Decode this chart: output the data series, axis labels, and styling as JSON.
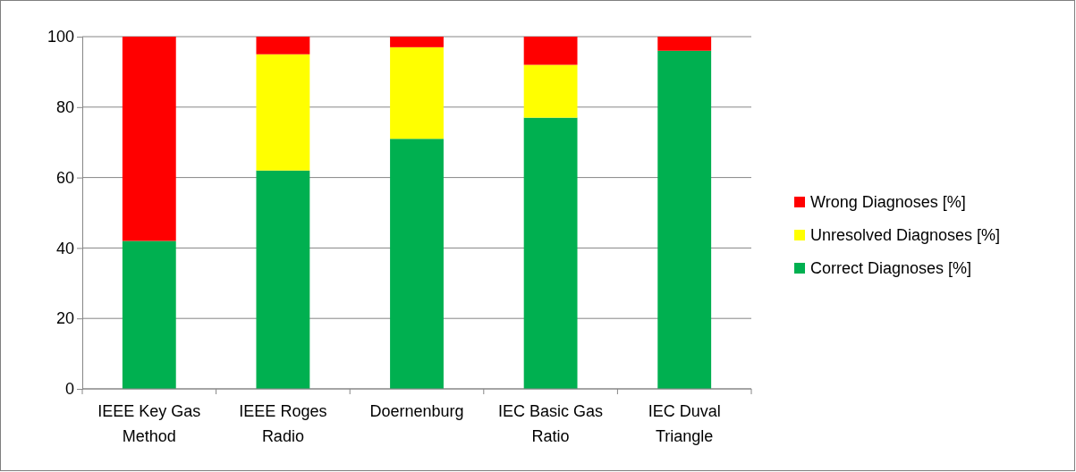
{
  "chart_data": {
    "type": "bar",
    "stacked": true,
    "categories": [
      "IEEE Key Gas Method",
      "IEEE Roges Radio",
      "Doernenburg",
      "IEC Basic Gas Ratio",
      "IEC Duval Triangle"
    ],
    "series": [
      {
        "name": "Correct Diagnoses [%]",
        "color": "#00b050",
        "values": [
          42,
          62,
          71,
          77,
          96
        ]
      },
      {
        "name": "Unresolved Diagnoses [%]",
        "color": "#ffff00",
        "values": [
          0,
          33,
          26,
          15,
          0
        ]
      },
      {
        "name": "Wrong Diagnoses [%]",
        "color": "#ff0000",
        "values": [
          58,
          5,
          3,
          8,
          4
        ]
      }
    ],
    "ylim": [
      0,
      100
    ],
    "yticks": [
      0,
      20,
      40,
      60,
      80,
      100
    ],
    "grid": "y",
    "legend": "right"
  }
}
